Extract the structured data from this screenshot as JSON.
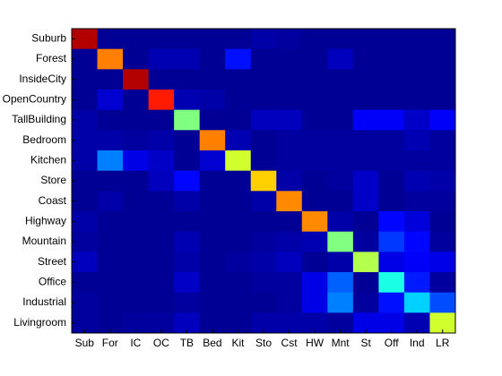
{
  "chart_data": {
    "type": "heatmap",
    "rows": [
      "Suburb",
      "Forest",
      "InsideCity",
      "OpenCountry",
      "TallBuilding",
      "Bedroom",
      "Kitchen",
      "Store",
      "Coast",
      "Highway",
      "Mountain",
      "Street",
      "Office",
      "Industrial",
      "Livingroom"
    ],
    "columns": [
      "Sub",
      "For",
      "IC",
      "OC",
      "TB",
      "Bed",
      "Kit",
      "Sto",
      "Cst",
      "HW",
      "Mnt",
      "St",
      "Off",
      "Ind",
      "LR"
    ],
    "colormap": "jet",
    "clim": [
      0,
      1
    ],
    "values": [
      [
        0.95,
        0.02,
        0.02,
        0.02,
        0.02,
        0.02,
        0.02,
        0.04,
        0.03,
        0.02,
        0.02,
        0.02,
        0.02,
        0.02,
        0.02
      ],
      [
        0.02,
        0.75,
        0.02,
        0.05,
        0.05,
        0.02,
        0.14,
        0.02,
        0.02,
        0.02,
        0.06,
        0.02,
        0.02,
        0.02,
        0.02
      ],
      [
        0.02,
        0.02,
        0.95,
        0.02,
        0.02,
        0.02,
        0.02,
        0.02,
        0.02,
        0.02,
        0.02,
        0.02,
        0.02,
        0.02,
        0.02
      ],
      [
        0.02,
        0.08,
        0.02,
        0.85,
        0.05,
        0.04,
        0.02,
        0.02,
        0.02,
        0.02,
        0.02,
        0.02,
        0.02,
        0.02,
        0.02
      ],
      [
        0.04,
        0.02,
        0.02,
        0.02,
        0.5,
        0.02,
        0.02,
        0.06,
        0.06,
        0.02,
        0.02,
        0.12,
        0.12,
        0.07,
        0.12
      ],
      [
        0.04,
        0.04,
        0.03,
        0.04,
        0.02,
        0.75,
        0.05,
        0.02,
        0.03,
        0.03,
        0.03,
        0.03,
        0.03,
        0.05,
        0.03
      ],
      [
        0.04,
        0.25,
        0.1,
        0.07,
        0.02,
        0.08,
        0.58,
        0.02,
        0.03,
        0.03,
        0.03,
        0.03,
        0.03,
        0.03,
        0.03
      ],
      [
        0.02,
        0.02,
        0.02,
        0.06,
        0.13,
        0.02,
        0.02,
        0.67,
        0.04,
        0.02,
        0.03,
        0.07,
        0.02,
        0.05,
        0.04
      ],
      [
        0.02,
        0.04,
        0.02,
        0.02,
        0.04,
        0.02,
        0.02,
        0.04,
        0.74,
        0.02,
        0.02,
        0.07,
        0.02,
        0.03,
        0.03
      ],
      [
        0.04,
        0.02,
        0.02,
        0.02,
        0.02,
        0.02,
        0.02,
        0.02,
        0.02,
        0.74,
        0.04,
        0.02,
        0.13,
        0.09,
        0.02
      ],
      [
        0.03,
        0.02,
        0.02,
        0.02,
        0.05,
        0.02,
        0.02,
        0.03,
        0.04,
        0.05,
        0.5,
        0.03,
        0.18,
        0.13,
        0.03
      ],
      [
        0.06,
        0.02,
        0.02,
        0.02,
        0.04,
        0.02,
        0.03,
        0.04,
        0.06,
        0.02,
        0.04,
        0.55,
        0.1,
        0.12,
        0.1
      ],
      [
        0.02,
        0.02,
        0.02,
        0.02,
        0.07,
        0.02,
        0.02,
        0.03,
        0.03,
        0.1,
        0.22,
        0.02,
        0.4,
        0.15,
        0.03
      ],
      [
        0.03,
        0.02,
        0.02,
        0.02,
        0.03,
        0.02,
        0.02,
        0.02,
        0.03,
        0.1,
        0.25,
        0.03,
        0.14,
        0.33,
        0.2
      ],
      [
        0.03,
        0.02,
        0.03,
        0.03,
        0.06,
        0.02,
        0.02,
        0.04,
        0.04,
        0.04,
        0.03,
        0.1,
        0.1,
        0.05,
        0.58
      ]
    ]
  }
}
